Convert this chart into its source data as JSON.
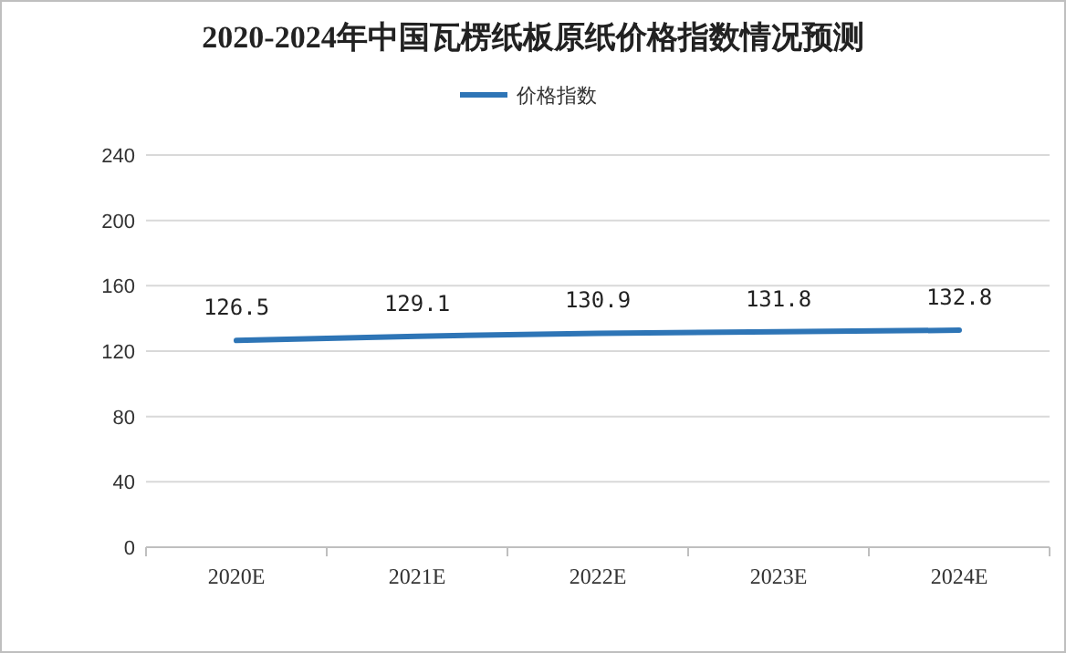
{
  "chart_data": {
    "type": "line",
    "title": "2020-2024年中国瓦楞纸板原纸价格指数情况预测",
    "categories": [
      "2020E",
      "2021E",
      "2022E",
      "2023E",
      "2024E"
    ],
    "series": [
      {
        "name": "价格指数",
        "color": "#2e75b6",
        "values": [
          126.5,
          129.1,
          130.9,
          131.8,
          132.8
        ]
      }
    ],
    "ylim": [
      0,
      240
    ],
    "yticks": [
      0,
      40,
      80,
      120,
      160,
      200,
      240
    ],
    "grid": "y",
    "legend": "top",
    "data_labels": true,
    "marker": "none",
    "line_style": "solid"
  }
}
